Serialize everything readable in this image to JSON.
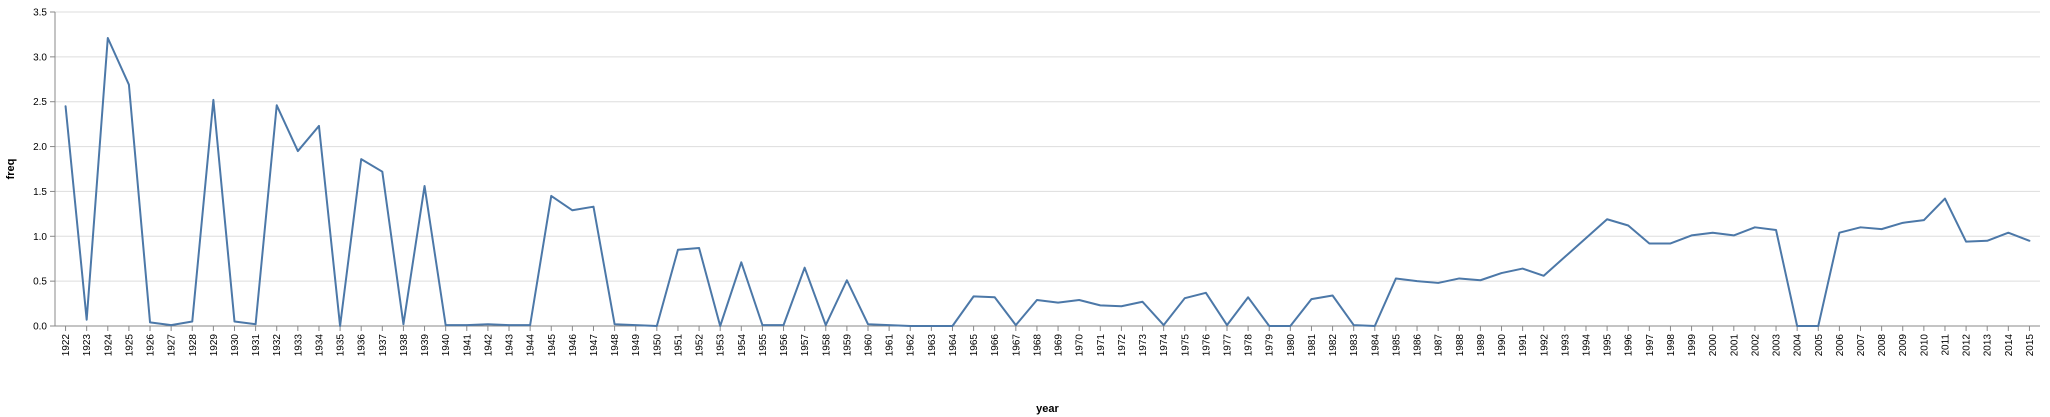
{
  "chart_data": {
    "type": "line",
    "xlabel": "year",
    "ylabel": "freq",
    "ylim": [
      0,
      3.5
    ],
    "yticks": [
      "0.0",
      "0.5",
      "1.0",
      "1.5",
      "2.0",
      "2.5",
      "3.0",
      "3.5"
    ],
    "grid": true,
    "color": "#4c78a8",
    "categories": [
      "1922",
      "1923",
      "1924",
      "1925",
      "1926",
      "1927",
      "1928",
      "1929",
      "1930",
      "1931",
      "1932",
      "1933",
      "1934",
      "1935",
      "1936",
      "1937",
      "1938",
      "1939",
      "1940",
      "1941",
      "1942",
      "1943",
      "1944",
      "1945",
      "1946",
      "1947",
      "1948",
      "1949",
      "1950",
      "1951",
      "1952",
      "1953",
      "1954",
      "1955",
      "1956",
      "1957",
      "1958",
      "1959",
      "1960",
      "1961",
      "1962",
      "1963",
      "1964",
      "1965",
      "1966",
      "1967",
      "1968",
      "1969",
      "1970",
      "1971",
      "1972",
      "1973",
      "1974",
      "1975",
      "1976",
      "1977",
      "1978",
      "1979",
      "1980",
      "1981",
      "1982",
      "1983",
      "1984",
      "1985",
      "1986",
      "1987",
      "1988",
      "1989",
      "1990",
      "1991",
      "1992",
      "1993",
      "1994",
      "1995",
      "1996",
      "1997",
      "1998",
      "1999",
      "2000",
      "2001",
      "2002",
      "2003",
      "2004",
      "2005",
      "2006",
      "2007",
      "2008",
      "2009",
      "2010",
      "2011",
      "2012",
      "2013",
      "2014",
      "2015"
    ],
    "values": [
      2.45,
      0.07,
      3.21,
      2.69,
      0.04,
      0.01,
      0.05,
      2.52,
      0.05,
      0.02,
      2.46,
      1.95,
      2.23,
      0.0,
      1.86,
      1.72,
      0.02,
      1.56,
      0.01,
      0.01,
      0.02,
      0.01,
      0.01,
      1.45,
      1.29,
      1.33,
      0.02,
      0.01,
      0.0,
      0.85,
      0.87,
      0.0,
      0.71,
      0.01,
      0.01,
      0.65,
      0.01,
      0.51,
      0.02,
      0.01,
      0.0,
      0.0,
      0.0,
      0.33,
      0.32,
      0.01,
      0.29,
      0.26,
      0.29,
      0.23,
      0.22,
      0.27,
      0.01,
      0.31,
      0.37,
      0.01,
      0.32,
      0.0,
      0.0,
      0.3,
      0.34,
      0.01,
      0.0,
      0.53,
      0.5,
      0.48,
      0.53,
      0.51,
      0.59,
      0.64,
      0.56,
      0.77,
      0.98,
      1.19,
      1.12,
      0.92,
      0.92,
      1.01,
      1.04,
      1.01,
      1.1,
      1.07,
      0.0,
      0.0,
      1.04,
      1.1,
      1.08,
      1.15,
      1.18,
      1.42,
      0.94,
      0.95,
      1.04,
      0.95
    ]
  }
}
